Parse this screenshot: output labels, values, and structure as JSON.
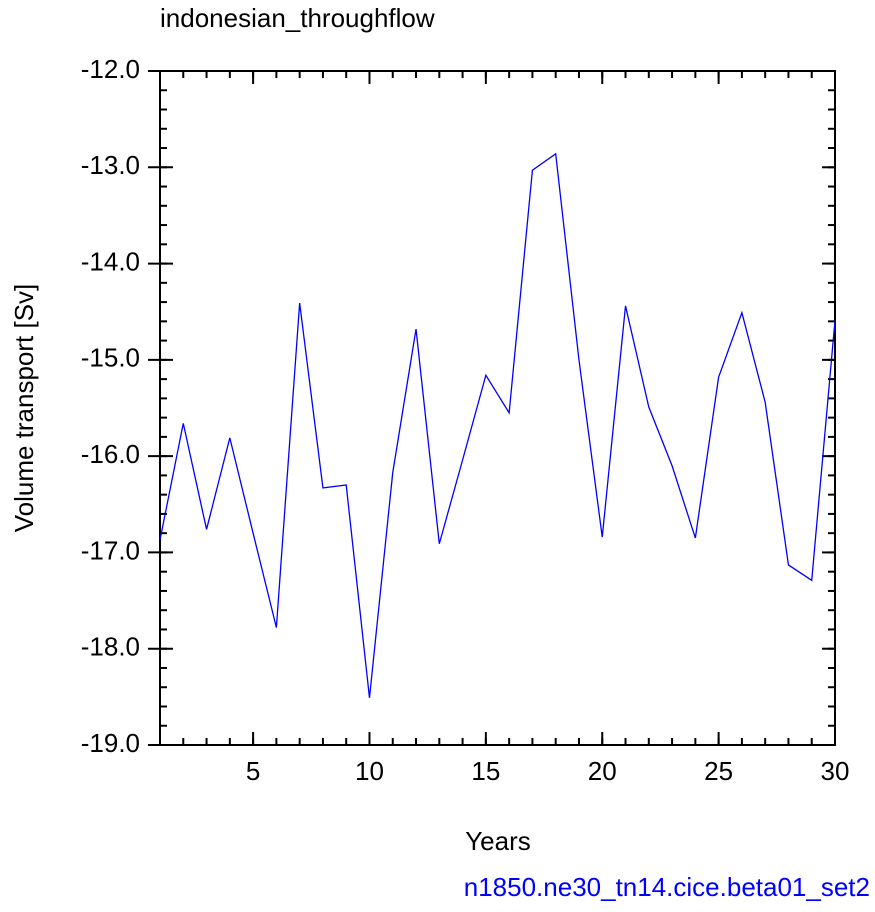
{
  "chart_data": {
    "type": "line",
    "title": "indonesian_throughflow",
    "xlabel": "Years",
    "ylabel": "Volume transport [Sv]",
    "annotation": "n1850.ne30_tn14.cice.beta01_set2",
    "x": [
      1,
      2,
      3,
      4,
      5,
      6,
      7,
      8,
      9,
      10,
      11,
      12,
      13,
      14,
      15,
      16,
      17,
      18,
      19,
      20,
      21,
      22,
      23,
      24,
      25,
      26,
      27,
      28,
      29,
      30
    ],
    "series": [
      {
        "name": null,
        "color": "#0000ff",
        "values": [
          -16.87,
          -15.66,
          -16.76,
          -15.81,
          -16.8,
          -17.78,
          -14.41,
          -16.33,
          -16.3,
          -18.51,
          -16.17,
          -14.68,
          -16.91,
          -16.04,
          -15.16,
          -15.55,
          -13.03,
          -12.86,
          -15.0,
          -16.84,
          -14.44,
          -15.49,
          -16.1,
          -16.85,
          -15.18,
          -14.51,
          -15.44,
          -17.13,
          -17.29,
          -14.59
        ]
      }
    ],
    "xlim": [
      1,
      30
    ],
    "xticks": [
      5,
      10,
      15,
      20,
      25,
      30
    ],
    "ylim": [
      -19,
      -12
    ],
    "yticks": [
      {
        "value": -19,
        "label": "-19.0"
      },
      {
        "value": -18,
        "label": "-18.0"
      },
      {
        "value": -17,
        "label": "-17.0"
      },
      {
        "value": -16,
        "label": "-16.0"
      },
      {
        "value": -15,
        "label": "-15.0"
      },
      {
        "value": -14,
        "label": "-14.0"
      },
      {
        "value": -13,
        "label": "-13.0"
      },
      {
        "value": -12,
        "label": "-12.0"
      }
    ],
    "grid": false,
    "annotation_color": "#0000ff"
  }
}
